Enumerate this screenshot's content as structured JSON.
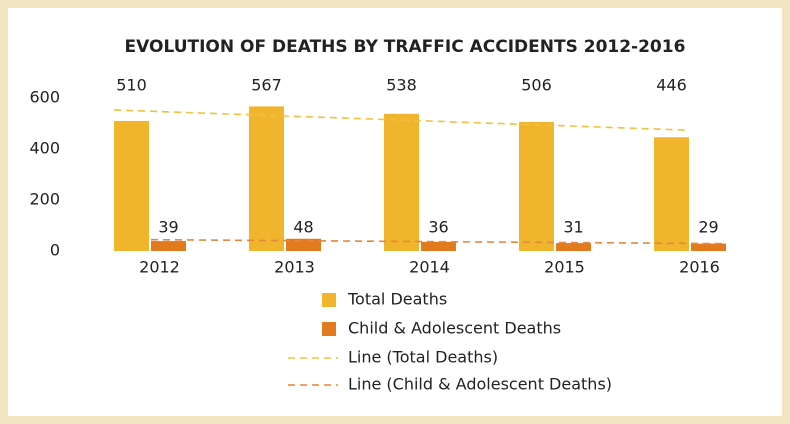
{
  "chart_data": {
    "type": "bar",
    "title": "EVOLUTION OF DEATHS BY TRAFFIC ACCIDENTS 2012-2016",
    "categories": [
      "2012",
      "2013",
      "2014",
      "2015",
      "2016"
    ],
    "series": [
      {
        "name": "Total Deaths",
        "color": "#f0b52d",
        "values": [
          510,
          567,
          538,
          506,
          446
        ],
        "trendline": {
          "name": "Line (Total Deaths)",
          "color": "#f3bf45"
        }
      },
      {
        "name": "Child & Adolescent Deaths",
        "color": "#e27a1e",
        "values": [
          39,
          48,
          36,
          31,
          29
        ],
        "trendline": {
          "name": "Line (Child & Adolescent Deaths)",
          "color": "#e5863a"
        }
      }
    ],
    "ylim": [
      0,
      600
    ],
    "yticks": [
      0,
      200,
      400,
      600
    ],
    "grid": false
  }
}
